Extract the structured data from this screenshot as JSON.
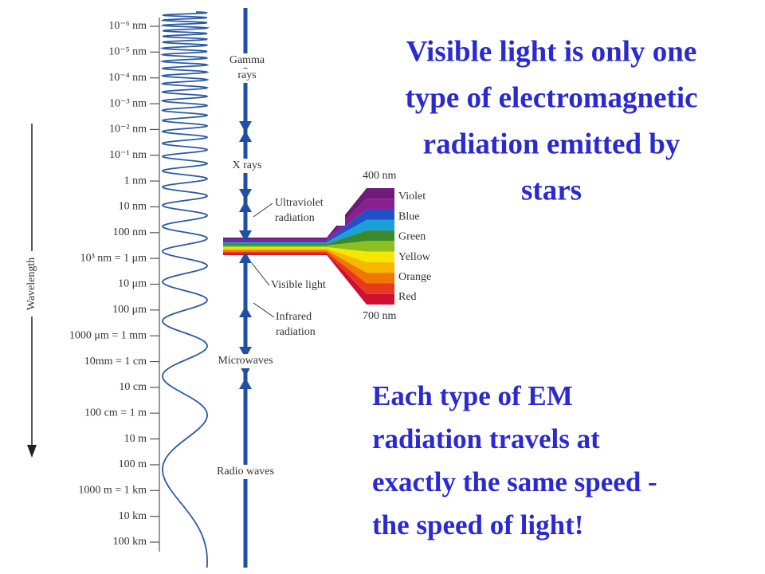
{
  "heading": {
    "lines": [
      "Visible light is only one",
      "type of electromagnetic",
      "radiation emitted by",
      "stars"
    ]
  },
  "note": {
    "lines": [
      "Each type of EM",
      "radiation travels at",
      "exactly the same speed -",
      "the speed of light!"
    ]
  },
  "scale": {
    "axis_label": "Wavelength",
    "labels": [
      "10⁻⁶ nm",
      "10⁻⁵ nm",
      "10⁻⁴ nm",
      "10⁻³ nm",
      "10⁻² nm",
      "10⁻¹ nm",
      "1 nm",
      "10 nm",
      "100 nm",
      "10³ nm = 1 μm",
      "10 μm",
      "100 μm",
      "1000 μm = 1 mm",
      "10mm = 1 cm",
      "10 cm",
      "100 cm = 1 m",
      "10 m",
      "100 m",
      "1000 m = 1 km",
      "10 km",
      "100 km"
    ]
  },
  "bands": [
    [
      "Gamma",
      "rays"
    ],
    [
      "X rays"
    ],
    [
      "Ultraviolet",
      "radiation"
    ],
    [
      "Visible light"
    ],
    [
      "Infrared",
      "radiation"
    ],
    [
      "Microwaves"
    ],
    [
      "Radio waves"
    ]
  ],
  "spectrum": {
    "top": "400 nm",
    "bottom": "700 nm",
    "colors": [
      "Violet",
      "Blue",
      "Green",
      "Yellow",
      "Orange",
      "Red"
    ]
  }
}
